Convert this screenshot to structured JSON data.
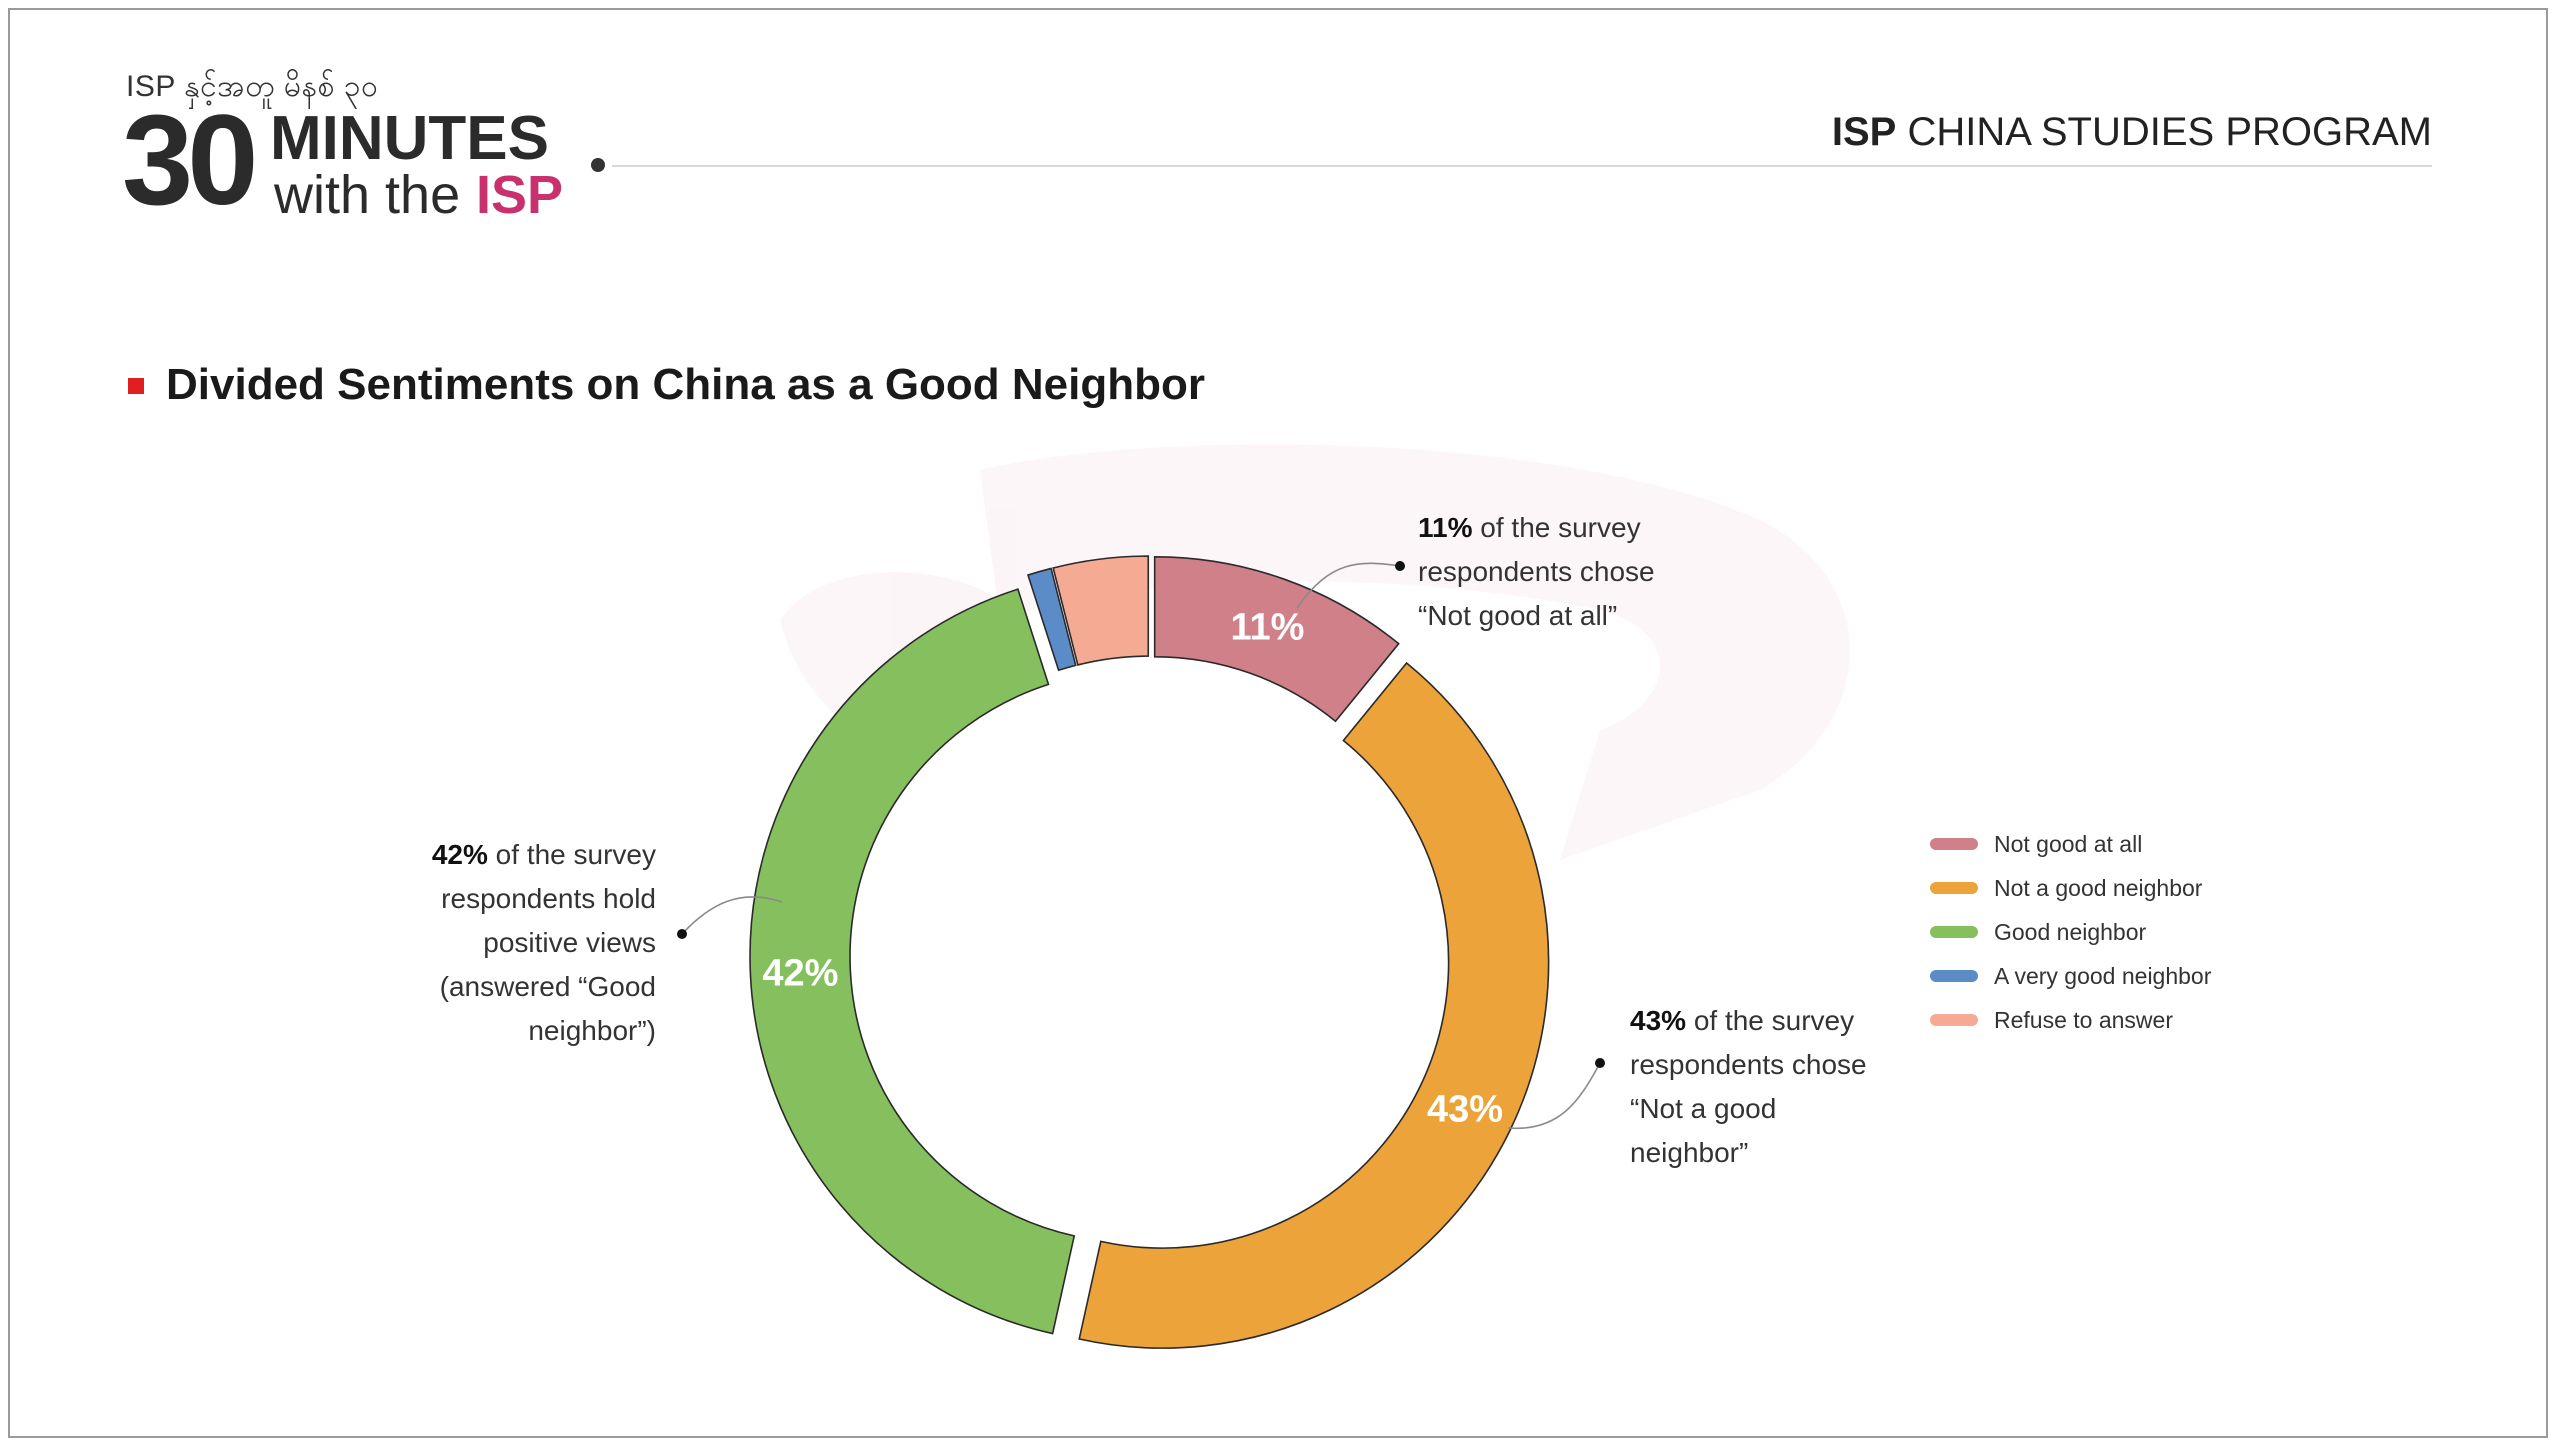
{
  "header": {
    "logo_small": "ISP နှင့်အတူ မိနစ် ၃၀",
    "logo_number": "30",
    "logo_minutes": "MINUTES",
    "logo_with": "with the",
    "logo_isp": "ISP",
    "program_bold": "ISP",
    "program_rest": " CHINA STUDIES PROGRAM"
  },
  "colors": {
    "accent_red": "#e02020",
    "brand_magenta": "#c8306e"
  },
  "chart_data": {
    "type": "pie",
    "title": "Divided Sentiments on China as a Good Neighbor",
    "donut": true,
    "categories": [
      "Not good at all",
      "Not a good neighbor",
      "Good neighbor",
      "A very good neighbor",
      "Refuse to answer"
    ],
    "values": [
      11,
      43,
      42,
      1,
      4
    ],
    "colors": [
      "#cf8088",
      "#eba33a",
      "#86bf5e",
      "#5b8cc8",
      "#f5ab93"
    ],
    "data_labels": [
      "11%",
      "43%",
      "42%",
      "",
      ""
    ],
    "legend_position": "right",
    "annotations": [
      {
        "bold": "11%",
        "text": " of the survey respondents chose “Not good at all”",
        "lines": [
          "11% of the survey",
          "respondents chose",
          "“Not good at all”"
        ]
      },
      {
        "bold": "43%",
        "text": " of the survey respondents chose “Not a good neighbor”",
        "lines": [
          "43% of the survey",
          "respondents chose",
          "“Not a good",
          "neighbor”"
        ]
      },
      {
        "bold": "42%",
        "text": " of the survey respondents hold positive views (answered “Good neighbor”)",
        "lines": [
          "42% of the survey",
          "respondents hold",
          "positive views",
          "(answered “Good",
          "neighbor”)"
        ]
      }
    ]
  }
}
